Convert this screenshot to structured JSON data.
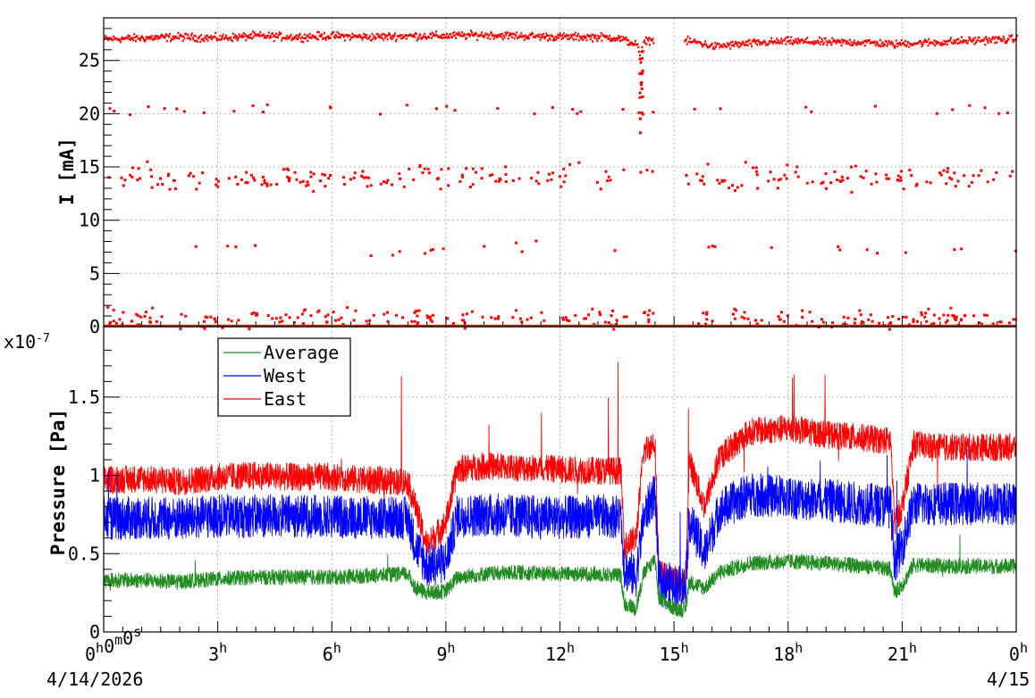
{
  "chart_data": [
    {
      "type": "scatter",
      "ylabel": "I [mA]",
      "ylim": [
        0,
        29
      ],
      "y_ticks": [
        "0",
        "5",
        "10",
        "15",
        "20",
        "25"
      ],
      "y_tick_values": [
        0,
        5,
        10,
        15,
        20,
        25
      ],
      "grid": true,
      "series": [
        {
          "color": "#ff0000",
          "note_levels": [
            27,
            14,
            20.3,
            7.3,
            0.8,
            0
          ],
          "main_beam": [
            [
              0,
              27.0
            ],
            [
              1,
              27.1
            ],
            [
              2,
              27.2
            ],
            [
              3,
              27.1
            ],
            [
              4,
              27.3
            ],
            [
              5,
              27.2
            ],
            [
              6,
              27.3
            ],
            [
              7,
              27.2
            ],
            [
              8,
              27.3
            ],
            [
              9,
              27.3
            ],
            [
              10,
              27.4
            ],
            [
              11,
              27.3
            ],
            [
              12,
              27.2
            ],
            [
              13,
              27.2
            ],
            [
              13.5,
              27.1
            ],
            [
              14.0,
              26.5
            ],
            [
              14.1,
              25.2
            ],
            [
              14.2,
              26.9
            ],
            [
              14.4,
              26.9
            ],
            [
              15.3,
              26.8
            ],
            [
              15.6,
              26.7
            ],
            [
              16,
              26.3
            ],
            [
              17,
              26.6
            ],
            [
              18,
              26.8
            ],
            [
              19,
              26.7
            ],
            [
              20,
              26.7
            ],
            [
              20.8,
              26.5
            ],
            [
              21,
              26.6
            ],
            [
              22,
              26.7
            ],
            [
              23,
              26.9
            ],
            [
              24,
              27.0
            ]
          ],
          "gap_hours": [
            14.45,
            15.25
          ]
        }
      ]
    },
    {
      "type": "line",
      "ylabel": "Pressure [Pa]",
      "y_exponent": "x10-7",
      "ylim": [
        0,
        1.95
      ],
      "y_ticks": [
        "0",
        "0.5",
        "1",
        "1.5"
      ],
      "y_tick_values": [
        0,
        0.5,
        1,
        1.5
      ],
      "grid": true,
      "legend_position": "top-left",
      "series": [
        {
          "name": "Average",
          "color": "#228b22",
          "points": [
            [
              0,
              0.33
            ],
            [
              1,
              0.33
            ],
            [
              2,
              0.32
            ],
            [
              3,
              0.34
            ],
            [
              4,
              0.35
            ],
            [
              5,
              0.35
            ],
            [
              6,
              0.35
            ],
            [
              7,
              0.36
            ],
            [
              8,
              0.37
            ],
            [
              8.2,
              0.28
            ],
            [
              8.5,
              0.25
            ],
            [
              9,
              0.26
            ],
            [
              9.3,
              0.35
            ],
            [
              10,
              0.37
            ],
            [
              11,
              0.38
            ],
            [
              12,
              0.37
            ],
            [
              13,
              0.37
            ],
            [
              13.6,
              0.36
            ],
            [
              13.7,
              0.18
            ],
            [
              14,
              0.15
            ],
            [
              14.2,
              0.37
            ],
            [
              14.5,
              0.47
            ],
            [
              14.6,
              0.22
            ],
            [
              15,
              0.15
            ],
            [
              15.3,
              0.14
            ],
            [
              15.4,
              0.32
            ],
            [
              15.8,
              0.28
            ],
            [
              16.2,
              0.38
            ],
            [
              17,
              0.44
            ],
            [
              18,
              0.45
            ],
            [
              19,
              0.44
            ],
            [
              20,
              0.42
            ],
            [
              20.7,
              0.4
            ],
            [
              20.8,
              0.25
            ],
            [
              21,
              0.3
            ],
            [
              21.3,
              0.43
            ],
            [
              22,
              0.42
            ],
            [
              23,
              0.42
            ],
            [
              24,
              0.42
            ]
          ]
        },
        {
          "name": "West",
          "color": "#0000ff",
          "points": [
            [
              0,
              0.72
            ],
            [
              1,
              0.73
            ],
            [
              2,
              0.72
            ],
            [
              3,
              0.74
            ],
            [
              4,
              0.74
            ],
            [
              5,
              0.74
            ],
            [
              6,
              0.74
            ],
            [
              7,
              0.73
            ],
            [
              8,
              0.73
            ],
            [
              8.2,
              0.55
            ],
            [
              8.5,
              0.42
            ],
            [
              9,
              0.45
            ],
            [
              9.3,
              0.74
            ],
            [
              10,
              0.75
            ],
            [
              11,
              0.74
            ],
            [
              12,
              0.73
            ],
            [
              13,
              0.74
            ],
            [
              13.6,
              0.74
            ],
            [
              13.7,
              0.4
            ],
            [
              14,
              0.35
            ],
            [
              14.2,
              0.73
            ],
            [
              14.5,
              0.9
            ],
            [
              14.6,
              0.32
            ],
            [
              15,
              0.3
            ],
            [
              15.3,
              0.29
            ],
            [
              15.4,
              0.72
            ],
            [
              15.8,
              0.5
            ],
            [
              16.2,
              0.78
            ],
            [
              17,
              0.88
            ],
            [
              18,
              0.86
            ],
            [
              19,
              0.84
            ],
            [
              20,
              0.82
            ],
            [
              20.7,
              0.8
            ],
            [
              20.8,
              0.45
            ],
            [
              21,
              0.55
            ],
            [
              21.3,
              0.82
            ],
            [
              22,
              0.82
            ],
            [
              23,
              0.82
            ],
            [
              24,
              0.82
            ]
          ]
        },
        {
          "name": "East",
          "color": "#ff0000",
          "points": [
            [
              0,
              0.97
            ],
            [
              1,
              0.98
            ],
            [
              2,
              0.96
            ],
            [
              3,
              0.99
            ],
            [
              4,
              1.0
            ],
            [
              5,
              0.99
            ],
            [
              6,
              0.99
            ],
            [
              7,
              0.97
            ],
            [
              8,
              0.96
            ],
            [
              8.2,
              0.8
            ],
            [
              8.5,
              0.55
            ],
            [
              9,
              0.7
            ],
            [
              9.3,
              1.04
            ],
            [
              10,
              1.06
            ],
            [
              11,
              1.05
            ],
            [
              12,
              1.04
            ],
            [
              13,
              1.03
            ],
            [
              13.6,
              1.03
            ],
            [
              13.7,
              0.55
            ],
            [
              14,
              0.6
            ],
            [
              14.2,
              1.15
            ],
            [
              14.5,
              1.22
            ],
            [
              14.6,
              0.38
            ],
            [
              15,
              0.32
            ],
            [
              15.3,
              0.3
            ],
            [
              15.4,
              1.1
            ],
            [
              15.8,
              0.8
            ],
            [
              16.2,
              1.12
            ],
            [
              17,
              1.28
            ],
            [
              18,
              1.3
            ],
            [
              19,
              1.26
            ],
            [
              20,
              1.24
            ],
            [
              20.7,
              1.22
            ],
            [
              20.8,
              0.7
            ],
            [
              21,
              0.8
            ],
            [
              21.3,
              1.2
            ],
            [
              22,
              1.18
            ],
            [
              23,
              1.18
            ],
            [
              24,
              1.18
            ]
          ]
        }
      ]
    }
  ],
  "x_axis": {
    "range_hours": [
      0,
      24
    ],
    "ticks": [
      {
        "hour": 0,
        "parts": [
          [
            "0",
            "h"
          ],
          [
            "0",
            "m"
          ],
          [
            "0",
            "s"
          ]
        ]
      },
      {
        "hour": 3,
        "parts": [
          [
            "3",
            "h"
          ]
        ]
      },
      {
        "hour": 6,
        "parts": [
          [
            "6",
            "h"
          ]
        ]
      },
      {
        "hour": 9,
        "parts": [
          [
            "9",
            "h"
          ]
        ]
      },
      {
        "hour": 12,
        "parts": [
          [
            "12",
            "h"
          ]
        ]
      },
      {
        "hour": 15,
        "parts": [
          [
            "15",
            "h"
          ]
        ]
      },
      {
        "hour": 18,
        "parts": [
          [
            "18",
            "h"
          ]
        ]
      },
      {
        "hour": 21,
        "parts": [
          [
            "21",
            "h"
          ]
        ]
      },
      {
        "hour": 24,
        "parts": [
          [
            "0",
            "h"
          ]
        ]
      }
    ],
    "date_start": "4/14/2026",
    "date_end": "4/15"
  },
  "legend": {
    "items": [
      "Average",
      "West",
      "East"
    ]
  },
  "labels": {
    "top_ylabel": "I [mA]",
    "bottom_ylabel": "Pressure [Pa]",
    "exponent_base": "x10",
    "exponent_power": "-7"
  }
}
